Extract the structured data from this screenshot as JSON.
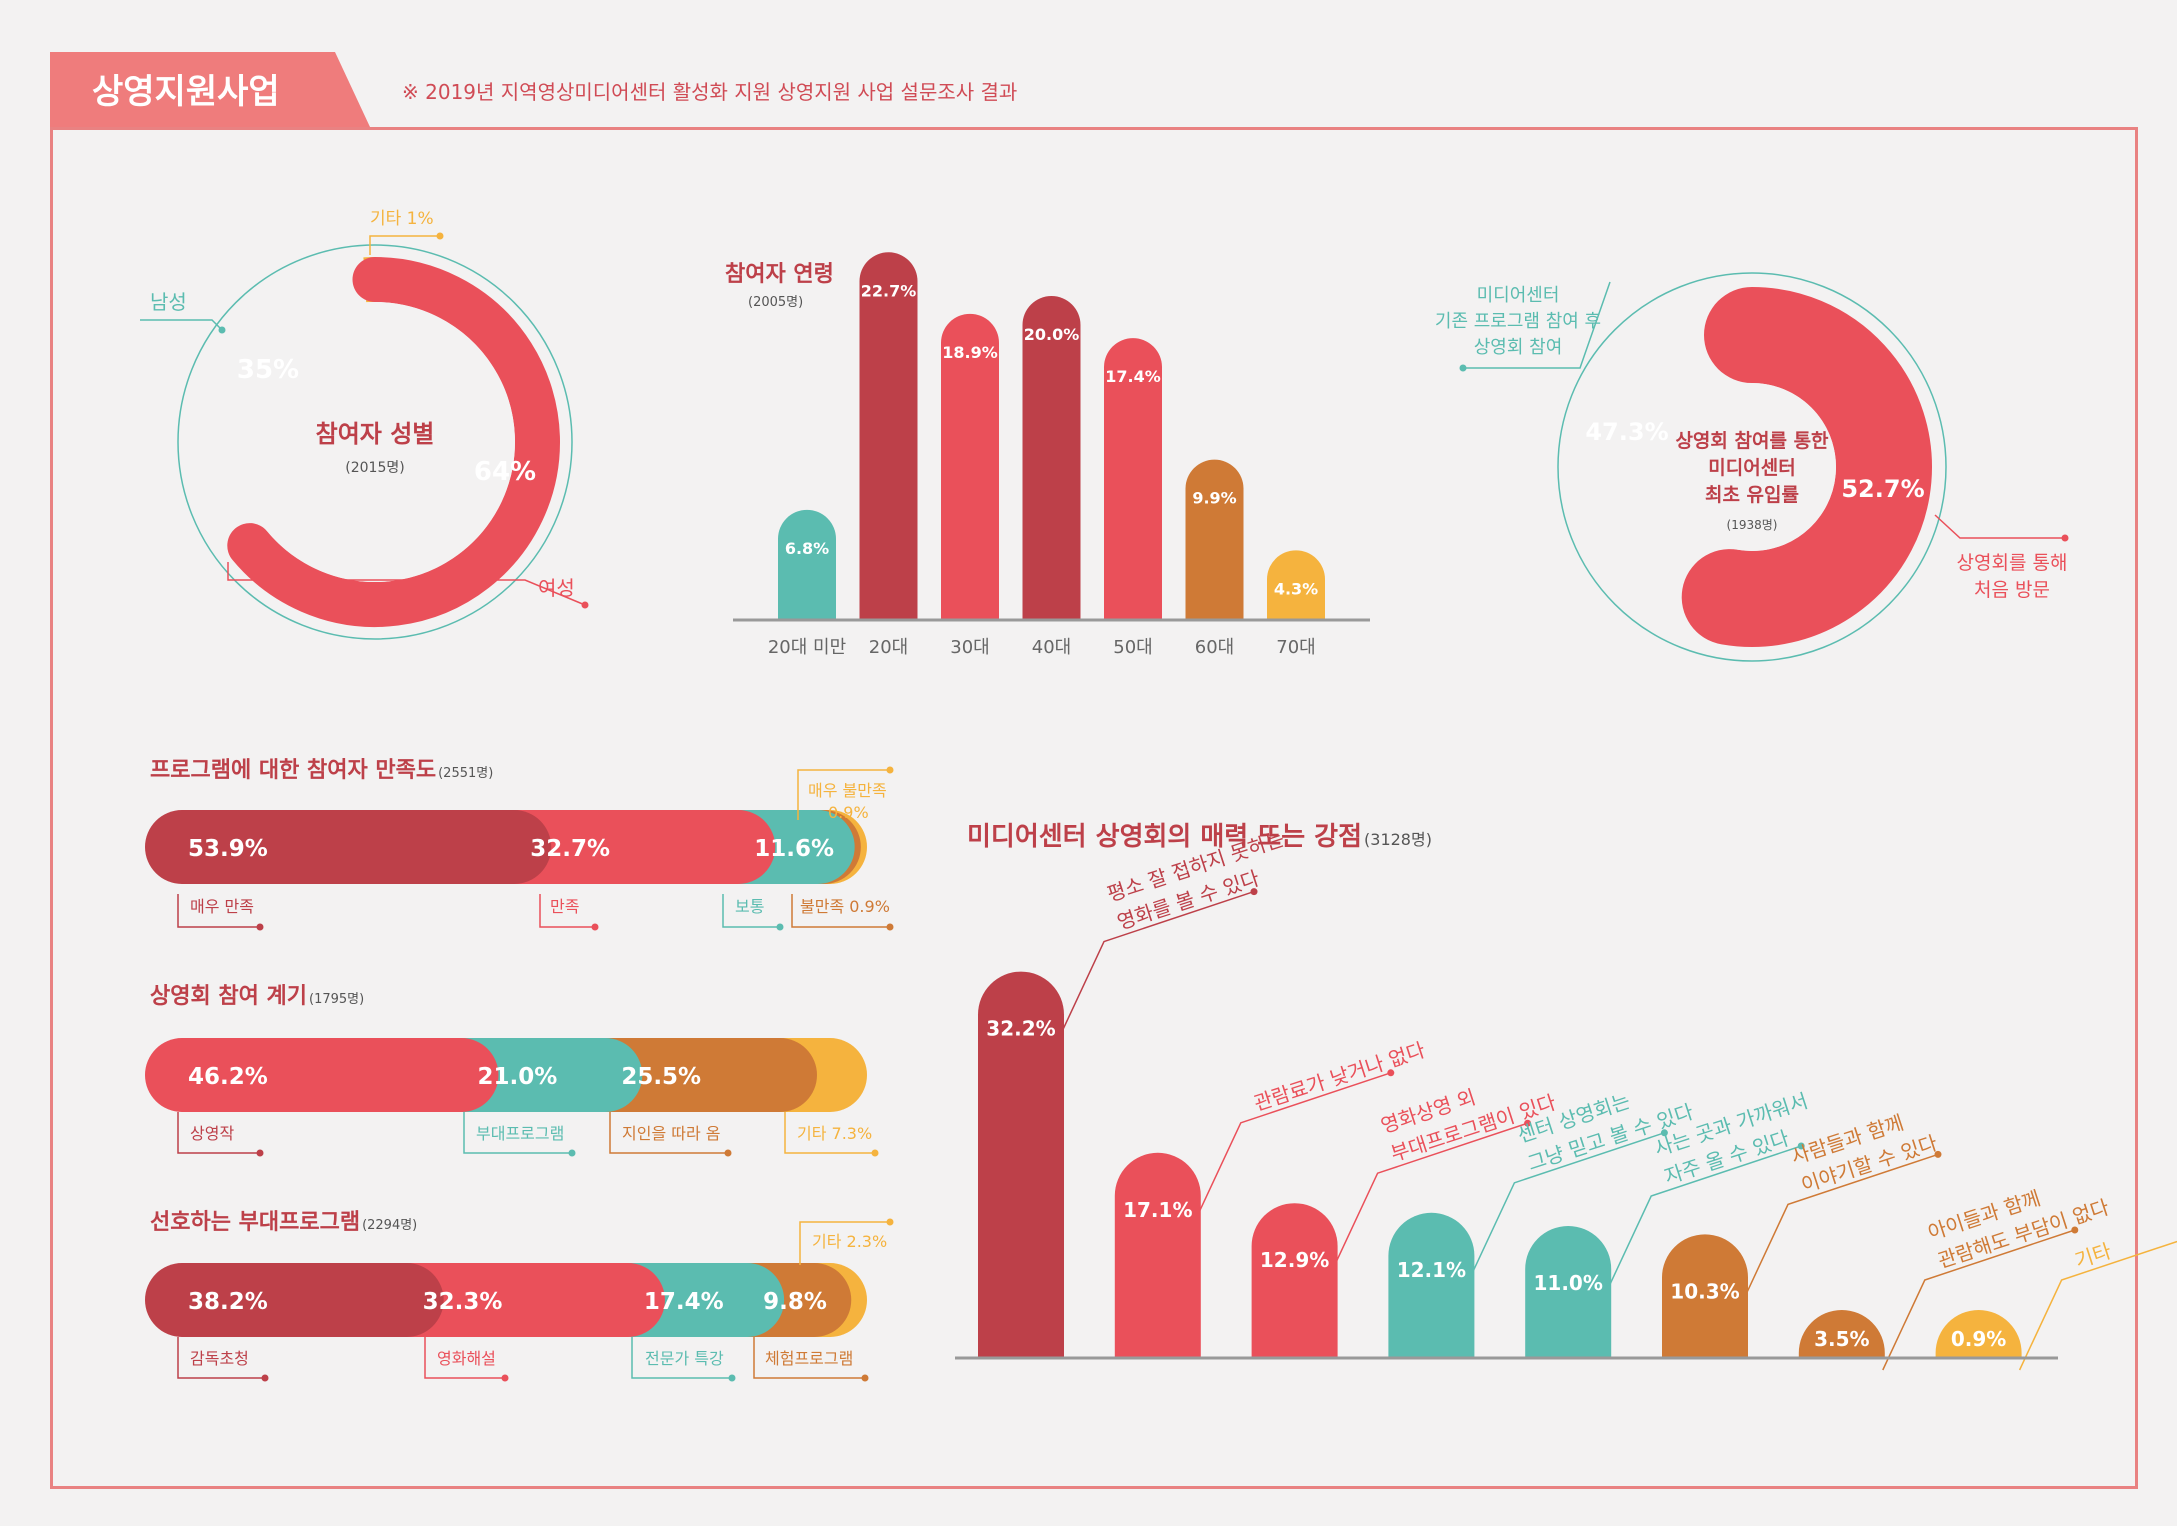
{
  "header": {
    "title": "상영지원사업",
    "subtitle": "※ 2019년 지역영상미디어센터 활성화 지원 상영지원 사업 설문조사 결과"
  },
  "colors": {
    "dark_red": "#bd4049",
    "red": "#ea505a",
    "teal": "#5bbcb0",
    "orange": "#cf7a36",
    "yellow": "#f5b33e",
    "frame": "#e98282"
  },
  "chart_data": [
    {
      "type": "pie",
      "title": "참여자 성별",
      "subtitle": "(2015명)",
      "categories": [
        "여성",
        "남성",
        "기타"
      ],
      "values": [
        64,
        35,
        1
      ],
      "value_labels": [
        "64%",
        "35%",
        ""
      ],
      "outer_labels": [
        "여성",
        "남성",
        "기타 1%"
      ]
    },
    {
      "type": "bar",
      "title": "참여자 연령",
      "subtitle": "(2005명)",
      "categories": [
        "20대 미만",
        "20대",
        "30대",
        "40대",
        "50대",
        "60대",
        "70대"
      ],
      "values": [
        6.8,
        22.7,
        18.9,
        20.0,
        17.4,
        9.9,
        4.3
      ],
      "value_labels": [
        "6.8%",
        "22.7%",
        "18.9%",
        "20.0%",
        "17.4%",
        "9.9%",
        "4.3%"
      ]
    },
    {
      "type": "pie",
      "title": "상영회 참여를 통한 미디어센터 최초 유입률",
      "title_lines": [
        "상영회 참여를 통한",
        "미디어센터",
        "최초 유입률"
      ],
      "subtitle": "(1938명)",
      "categories": [
        "상영회를 통해 처음 방문",
        "미디어센터 기존 프로그램 참여 후 상영회 참여"
      ],
      "values": [
        52.7,
        47.3
      ],
      "value_labels": [
        "52.7%",
        "47.3%"
      ],
      "outer_labels_lines": [
        [
          "상영회를 통해",
          "처음 방문"
        ],
        [
          "미디어센터",
          "기존 프로그램 참여 후",
          "상영회 참여"
        ]
      ]
    },
    {
      "type": "bar",
      "orientation": "horizontal-stacked",
      "title": "프로그램에 대한 참여자 만족도",
      "subtitle": "(2551명)",
      "categories": [
        "매우 만족",
        "만족",
        "보통",
        "불만족",
        "매우 불만족"
      ],
      "values": [
        53.9,
        32.7,
        11.6,
        0.9,
        0.9
      ],
      "value_labels": [
        "53.9%",
        "32.7%",
        "11.6%",
        "",
        ""
      ],
      "legend_labels": [
        "매우 만족",
        "만족",
        "보통",
        "불만족 0.9%",
        "매우 불만족",
        "0.9%"
      ]
    },
    {
      "type": "bar",
      "orientation": "horizontal-stacked",
      "title": "상영회 참여 계기",
      "subtitle": "(1795명)",
      "categories": [
        "상영작",
        "부대프로그램",
        "지인을 따라 옴",
        "기타"
      ],
      "values": [
        46.2,
        21.0,
        25.5,
        7.3
      ],
      "value_labels": [
        "46.2%",
        "21.0%",
        "25.5%",
        ""
      ],
      "legend_labels": [
        "상영작",
        "부대프로그램",
        "지인을 따라 옴",
        "기타 7.3%"
      ]
    },
    {
      "type": "bar",
      "orientation": "horizontal-stacked",
      "title": "선호하는 부대프로그램",
      "subtitle": "(2294명)",
      "categories": [
        "감독초청",
        "영화해설",
        "전문가 특강",
        "체험프로그램",
        "기타"
      ],
      "values": [
        38.2,
        32.3,
        17.4,
        9.8,
        2.3
      ],
      "value_labels": [
        "38.2%",
        "32.3%",
        "17.4%",
        "9.8%",
        ""
      ],
      "legend_labels": [
        "감독초청",
        "영화해설",
        "전문가 특강",
        "체험프로그램",
        "기타 2.3%"
      ]
    },
    {
      "type": "bar",
      "title": "미디어센터 상영회의 매력 또는 강점",
      "subtitle": "(3128명)",
      "categories": [
        "평소 잘 접하지 못하는 영화를 볼 수 있다",
        "관람료가 낮거나 없다",
        "영화상영 외 부대프로그램이 있다",
        "센터 상영회는 그냥 믿고 볼 수 있다",
        "사는 곳과 가까워서 자주 올 수 있다",
        "사람들과 함께 이야기할 수 있다",
        "아이들과 함께 관람해도 부담이 없다",
        "기타"
      ],
      "category_lines": [
        [
          "평소 잘 접하지 못하는",
          "영화를 볼 수 있다"
        ],
        [
          "관람료가 낮거나 없다"
        ],
        [
          "영화상영 외",
          "부대프로그램이 있다"
        ],
        [
          "센터 상영회는",
          "그냥 믿고 볼 수 있다"
        ],
        [
          "사는 곳과 가까워서",
          "자주 올 수 있다"
        ],
        [
          "사람들과 함께",
          "이야기할 수 있다"
        ],
        [
          "아이들과 함께",
          "관람해도 부담이 없다"
        ],
        [
          "기타"
        ]
      ],
      "values": [
        32.2,
        17.1,
        12.9,
        12.1,
        11.0,
        10.3,
        3.5,
        0.9
      ],
      "value_labels": [
        "32.2%",
        "17.1%",
        "12.9%",
        "12.1%",
        "11.0%",
        "10.3%",
        "3.5%",
        "0.9%"
      ]
    }
  ]
}
